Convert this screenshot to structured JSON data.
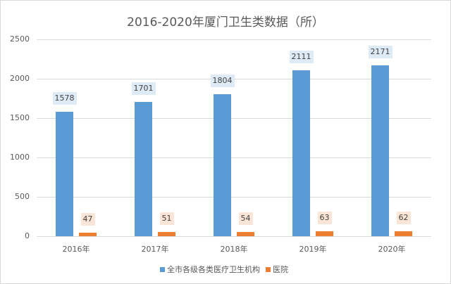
{
  "chart_data": {
    "type": "bar",
    "title": "2016-2020年厦门卫生类数据（所）",
    "xlabel": "",
    "ylabel": "",
    "ylim": [
      0,
      2500
    ],
    "yticks": [
      "0",
      "500",
      "1000",
      "1500",
      "2000",
      "2500"
    ],
    "grid": true,
    "legend_position": "bottom",
    "categories": [
      "2016年",
      "2017年",
      "2018年",
      "2019年",
      "2020年"
    ],
    "series": [
      {
        "name": "全市各级各类医疗卫生机构",
        "color": "#5b9bd5",
        "label_bg": "#deebf7",
        "values": [
          1578,
          1701,
          1804,
          2111,
          2171
        ]
      },
      {
        "name": "医院",
        "color": "#ed7d31",
        "label_bg": "#fbe5d6",
        "values": [
          47,
          51,
          54,
          63,
          62
        ]
      }
    ]
  }
}
